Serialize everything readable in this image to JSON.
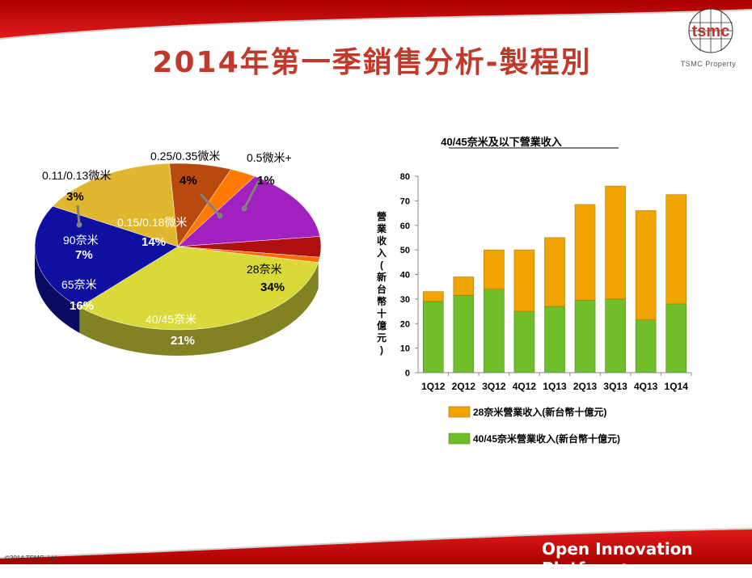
{
  "slide": {
    "title": "2014年第一季銷售分析-製程別",
    "logo_text": "tsmc",
    "property_label": "TSMC Property",
    "copyright": "©2014 TSMC, Ltd",
    "platform": "Open Innovation Platform",
    "platform_mark": "®"
  },
  "colors": {
    "brand_red": "#c0392b",
    "rev28": "#f0a400",
    "rev40": "#6fbe2a"
  },
  "chart_data": [
    {
      "type": "pie",
      "slices": [
        {
          "name": "28奈米",
          "value": 34,
          "label": "34%",
          "color": "#d9d93a"
        },
        {
          "name": "40/45奈米",
          "value": 21,
          "label": "21%",
          "color": "#1010a0"
        },
        {
          "name": "65奈米",
          "value": 16,
          "label": "16%",
          "color": "#e0b830"
        },
        {
          "name": "90奈米",
          "value": 7,
          "label": "7%",
          "color": "#b84a0e"
        },
        {
          "name": "0.11/0.13微米",
          "value": 3,
          "label": "3%",
          "color": "#ff7a00"
        },
        {
          "name": "0.15/0.18微米",
          "value": 14,
          "label": "14%",
          "color": "#a020c0"
        },
        {
          "name": "0.25/0.35微米",
          "value": 4,
          "label": "4%",
          "color": "#b01010"
        },
        {
          "name": "0.5微米+",
          "value": 1,
          "label": "1%",
          "color": "#ff6a00"
        }
      ]
    },
    {
      "type": "bar",
      "stacked": true,
      "title": "40/45奈米及以下營業收入",
      "ylabel": "營業收入(新台幣十億元)",
      "ylim": [
        0,
        80
      ],
      "yticks": [
        0,
        10,
        20,
        30,
        40,
        50,
        60,
        70,
        80
      ],
      "categories": [
        "1Q12",
        "2Q12",
        "3Q12",
        "4Q12",
        "1Q13",
        "2Q13",
        "3Q13",
        "4Q13",
        "1Q14"
      ],
      "series": [
        {
          "name": "40/45奈米營業收入(新台幣十億元)",
          "color": "#6fbe2a",
          "values": [
            29,
            31.5,
            34,
            25,
            27,
            29.5,
            30,
            21.5,
            28
          ]
        },
        {
          "name": "28奈米營業收入(新台幣十億元)",
          "color": "#f0a400",
          "values": [
            4,
            7.5,
            16,
            25,
            28,
            39,
            46,
            44.5,
            44.5
          ]
        }
      ],
      "legend": "bottom"
    }
  ]
}
